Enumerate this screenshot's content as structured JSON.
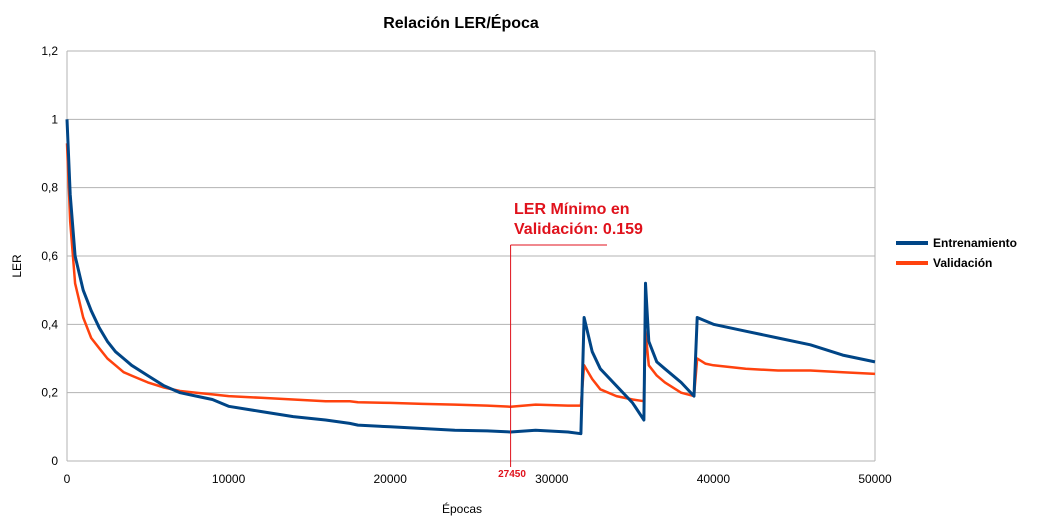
{
  "chart_data": {
    "type": "line",
    "title": "Relación LER/Época",
    "xlabel": "Épocas",
    "ylabel": "LER",
    "xlim": [
      0,
      50000
    ],
    "ylim": [
      0,
      1.2
    ],
    "x_ticks": [
      "0",
      "10000",
      "20000",
      "30000",
      "40000",
      "50000"
    ],
    "y_ticks": [
      "0",
      "0,2",
      "0,4",
      "0,6",
      "0,8",
      "1",
      "1,2"
    ],
    "grid": "horizontal",
    "legend_position": "right",
    "x": [
      0,
      200,
      500,
      1000,
      1500,
      2000,
      2500,
      3000,
      3500,
      4000,
      5000,
      6000,
      7000,
      8000,
      9000,
      10000,
      12000,
      14000,
      16000,
      17500,
      18000,
      20000,
      22000,
      24000,
      26000,
      27450,
      29000,
      31000,
      31800,
      32000,
      32500,
      33000,
      34000,
      35000,
      35700,
      35800,
      36000,
      36500,
      37000,
      38000,
      38800,
      39000,
      39500,
      40000,
      42000,
      44000,
      46000,
      48000,
      50000
    ],
    "series": [
      {
        "name": "Entrenamiento",
        "color": "#004586",
        "values": [
          1.0,
          0.78,
          0.6,
          0.5,
          0.44,
          0.39,
          0.35,
          0.32,
          0.3,
          0.28,
          0.25,
          0.22,
          0.2,
          0.19,
          0.18,
          0.16,
          0.145,
          0.13,
          0.12,
          0.11,
          0.105,
          0.1,
          0.095,
          0.09,
          0.088,
          0.085,
          0.09,
          0.085,
          0.08,
          0.42,
          0.32,
          0.27,
          0.22,
          0.17,
          0.12,
          0.52,
          0.35,
          0.29,
          0.27,
          0.23,
          0.19,
          0.42,
          0.41,
          0.4,
          0.38,
          0.36,
          0.34,
          0.31,
          0.29
        ]
      },
      {
        "name": "Validación",
        "color": "#ff420e",
        "values": [
          0.93,
          0.7,
          0.52,
          0.42,
          0.36,
          0.33,
          0.3,
          0.28,
          0.26,
          0.25,
          0.23,
          0.215,
          0.205,
          0.2,
          0.195,
          0.19,
          0.185,
          0.18,
          0.175,
          0.175,
          0.172,
          0.17,
          0.167,
          0.165,
          0.162,
          0.159,
          0.165,
          0.162,
          0.162,
          0.28,
          0.24,
          0.21,
          0.19,
          0.18,
          0.175,
          0.38,
          0.28,
          0.25,
          0.23,
          0.2,
          0.19,
          0.3,
          0.285,
          0.28,
          0.27,
          0.265,
          0.265,
          0.26,
          0.255
        ]
      }
    ],
    "annotation": {
      "text_line1": "LER Mínimo en",
      "text_line2": "Validación: 0.159",
      "x_marker_label": "27450",
      "x_marker": 27450,
      "color": "#e0121c"
    }
  }
}
